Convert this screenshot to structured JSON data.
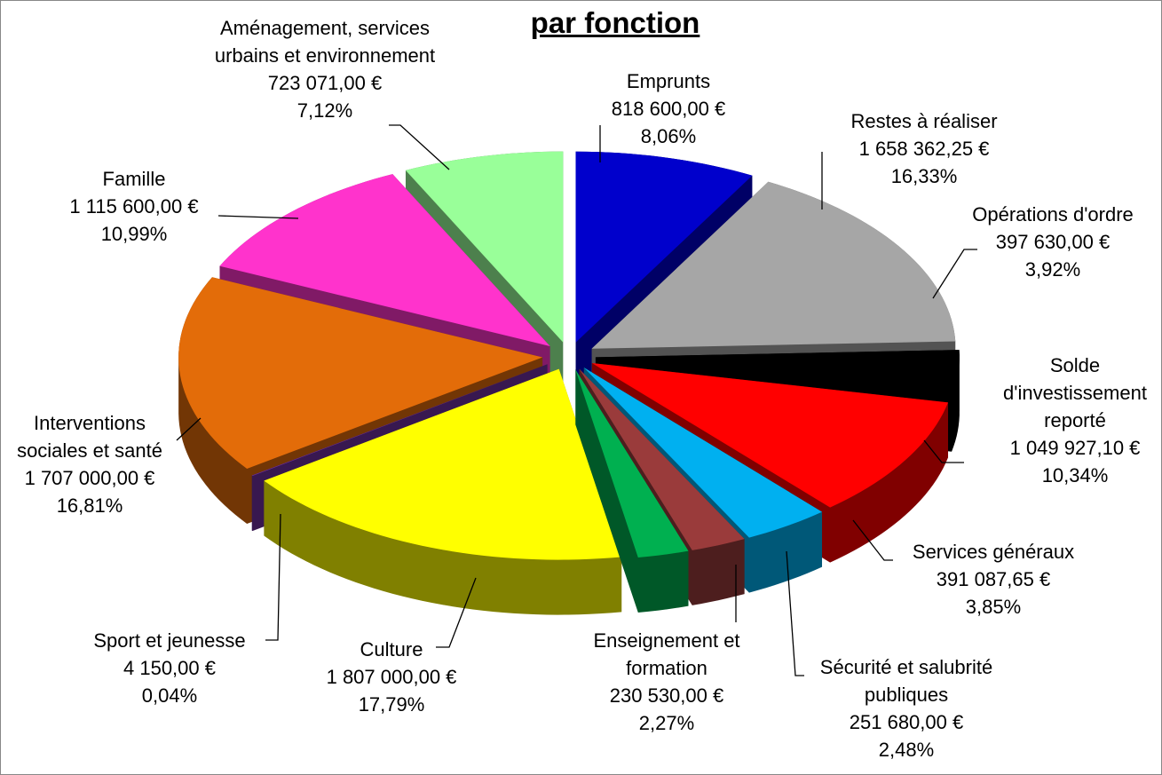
{
  "chart_data": {
    "type": "pie",
    "title": "par fonction",
    "categories": [
      "Emprunts",
      "Restes à réaliser",
      "Opérations d'ordre",
      "Solde d'investissement reporté",
      "Services généraux",
      "Sécurité et salubrité publiques",
      "Enseignement et formation",
      "Culture",
      "Sport et jeunesse",
      "Interventions sociales et santé",
      "Famille",
      "Aménagement, services urbains et environnement"
    ],
    "values": [
      818600,
      1658362.25,
      397630,
      1049927.1,
      391087.65,
      251680,
      230530,
      1807000,
      4150,
      1707000,
      1115600,
      723071
    ],
    "value_labels": [
      "818 600,00 €",
      "1 658 362,25 €",
      "397 630,00 €",
      "1 049 927,10 €",
      "391 087,65 €",
      "251 680,00 €",
      "230 530,00 €",
      "1 807 000,00 €",
      "4 150,00 €",
      "1 707 000,00 €",
      "1 115 600,00 €",
      "723 071,00 €"
    ],
    "percent_labels": [
      "8,06%",
      "16,33%",
      "3,92%",
      "10,34%",
      "3,85%",
      "2,48%",
      "2,27%",
      "17,79%",
      "0,04%",
      "16,81%",
      "10,99%",
      "7,12%"
    ],
    "colors": [
      "#0000cc",
      "#a6a6a6",
      "#000000",
      "#ff0000",
      "#00b0f0",
      "#9a3b3b",
      "#00b050",
      "#ffff00",
      "#7030a0",
      "#e36c09",
      "#ff33cc",
      "#99ff99"
    ]
  }
}
